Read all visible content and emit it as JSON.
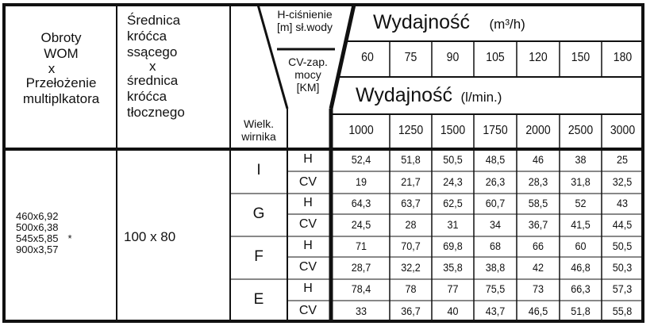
{
  "table": {
    "header": {
      "col_speed": [
        "Obroty",
        "WOM",
        "x",
        "Przełożenie",
        "multiplkatora"
      ],
      "col_diam": [
        "Średnica",
        "króćca",
        "ssącego",
        "x",
        "średnica",
        "króćca",
        "tłocznego"
      ],
      "col_impeller": [
        "Wielk.",
        "wirnika"
      ],
      "col_param_top": [
        "H-ciśnienie",
        "[m] sł.wody"
      ],
      "col_param_bottom": [
        "CV-zap.",
        "mocy",
        "[KM]"
      ],
      "flow_m3h_title": "Wydajność",
      "flow_m3h_unit": "(m³/h)",
      "flow_m3h_values": [
        "60",
        "75",
        "90",
        "105",
        "120",
        "150",
        "180"
      ],
      "flow_lmin_title": "Wydajność",
      "flow_lmin_unit": "(l/min.)",
      "flow_lmin_values": [
        "1000",
        "1250",
        "1500",
        "1750",
        "2000",
        "2500",
        "3000"
      ]
    },
    "speeds": [
      "460x6,92",
      "500x6,38",
      "545x5,85",
      "900x3,57"
    ],
    "speed_marker": "*",
    "diameter": "100 x 80",
    "impellers": [
      {
        "size": "I",
        "H": [
          "52,4",
          "51,8",
          "50,5",
          "48,5",
          "46",
          "38",
          "25"
        ],
        "CV": [
          "19",
          "21,7",
          "24,3",
          "26,3",
          "28,3",
          "31,8",
          "32,5"
        ]
      },
      {
        "size": "G",
        "H": [
          "64,3",
          "63,7",
          "62,5",
          "60,7",
          "58,5",
          "52",
          "43"
        ],
        "CV": [
          "24,5",
          "28",
          "31",
          "34",
          "36,7",
          "41,5",
          "44,5"
        ]
      },
      {
        "size": "F",
        "H": [
          "71",
          "70,7",
          "69,8",
          "68",
          "66",
          "60",
          "50,5"
        ],
        "CV": [
          "28,7",
          "32,2",
          "35,8",
          "38,8",
          "42",
          "46,8",
          "50,3"
        ]
      },
      {
        "size": "E",
        "H": [
          "78,4",
          "78",
          "77",
          "75,5",
          "73",
          "66,3",
          "57,3"
        ],
        "CV": [
          "33",
          "36,7",
          "40",
          "43,7",
          "46,5",
          "51,8",
          "55,8"
        ]
      }
    ],
    "row_labels": {
      "H": "H",
      "CV": "CV"
    }
  }
}
